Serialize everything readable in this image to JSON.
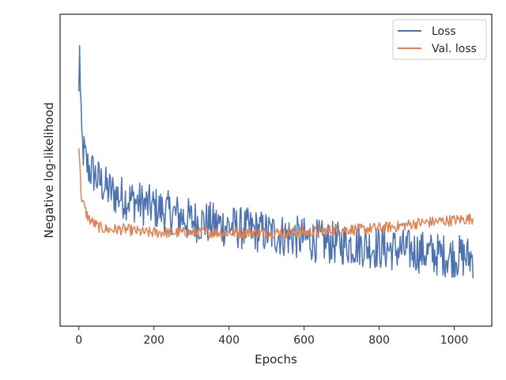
{
  "chart_data": {
    "type": "line",
    "title": "",
    "xlabel": "Epochs",
    "ylabel": "Negative log-likelihood",
    "xlim": [
      -50,
      1100
    ],
    "ylim": [
      0,
      1
    ],
    "xticks": [
      0,
      200,
      400,
      600,
      800,
      1000
    ],
    "yticks_shown": false,
    "grid": false,
    "legend": {
      "placement": "top-right"
    },
    "series": [
      {
        "name": "Loss",
        "color": "#4c72b0",
        "x": [
          0,
          2,
          5,
          10,
          15,
          20,
          30,
          40,
          50,
          60,
          75,
          100,
          125,
          150,
          175,
          200,
          250,
          300,
          350,
          400,
          450,
          500,
          550,
          600,
          650,
          700,
          750,
          800,
          850,
          900,
          950,
          1000,
          1050
        ],
        "y": [
          0.72,
          0.94,
          0.62,
          0.57,
          0.55,
          0.52,
          0.5,
          0.49,
          0.47,
          0.46,
          0.44,
          0.42,
          0.41,
          0.4,
          0.39,
          0.38,
          0.36,
          0.34,
          0.33,
          0.32,
          0.31,
          0.3,
          0.29,
          0.28,
          0.27,
          0.265,
          0.26,
          0.25,
          0.245,
          0.24,
          0.23,
          0.225,
          0.22
        ]
      },
      {
        "name": "Val. loss",
        "color": "#dd8452",
        "x": [
          0,
          2,
          5,
          10,
          15,
          20,
          30,
          40,
          50,
          60,
          75,
          100,
          125,
          150,
          175,
          200,
          250,
          300,
          350,
          400,
          450,
          500,
          550,
          600,
          650,
          700,
          750,
          800,
          850,
          900,
          950,
          1000,
          1050
        ],
        "y": [
          0.58,
          0.54,
          0.44,
          0.4,
          0.38,
          0.36,
          0.34,
          0.33,
          0.32,
          0.315,
          0.31,
          0.31,
          0.31,
          0.305,
          0.3,
          0.3,
          0.3,
          0.3,
          0.3,
          0.3,
          0.3,
          0.3,
          0.3,
          0.3,
          0.305,
          0.31,
          0.31,
          0.315,
          0.32,
          0.33,
          0.335,
          0.34,
          0.345
        ]
      }
    ]
  }
}
